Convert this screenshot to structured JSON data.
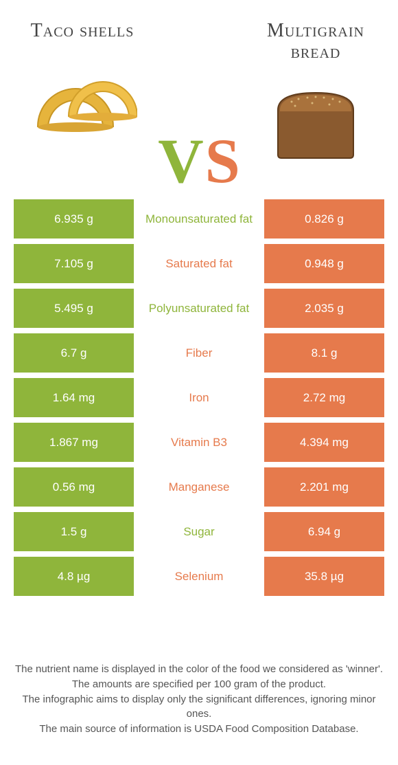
{
  "colors": {
    "left": "#8fb53b",
    "right": "#e67a4c"
  },
  "left_food": {
    "title": "Taco shells"
  },
  "right_food": {
    "title": "Multigrain bread"
  },
  "vs": {
    "v": "V",
    "s": "S"
  },
  "rows": [
    {
      "left": "6.935 g",
      "label": "Monounsaturated fat",
      "right": "0.826 g",
      "winner": "left"
    },
    {
      "left": "7.105 g",
      "label": "Saturated fat",
      "right": "0.948 g",
      "winner": "right"
    },
    {
      "left": "5.495 g",
      "label": "Polyunsaturated fat",
      "right": "2.035 g",
      "winner": "left"
    },
    {
      "left": "6.7 g",
      "label": "Fiber",
      "right": "8.1 g",
      "winner": "right"
    },
    {
      "left": "1.64 mg",
      "label": "Iron",
      "right": "2.72 mg",
      "winner": "right"
    },
    {
      "left": "1.867 mg",
      "label": "Vitamin B3",
      "right": "4.394 mg",
      "winner": "right"
    },
    {
      "left": "0.56 mg",
      "label": "Manganese",
      "right": "2.201 mg",
      "winner": "right"
    },
    {
      "left": "1.5 g",
      "label": "Sugar",
      "right": "6.94 g",
      "winner": "left"
    },
    {
      "left": "4.8 µg",
      "label": "Selenium",
      "right": "35.8 µg",
      "winner": "right"
    }
  ],
  "footer": {
    "l1": "The nutrient name is displayed in the color of the food we considered as 'winner'.",
    "l2": "The amounts are specified per 100 gram of the product.",
    "l3": "The infographic aims to display only the significant differences, ignoring minor ones.",
    "l4": "The main source of information is USDA Food Composition Database."
  }
}
